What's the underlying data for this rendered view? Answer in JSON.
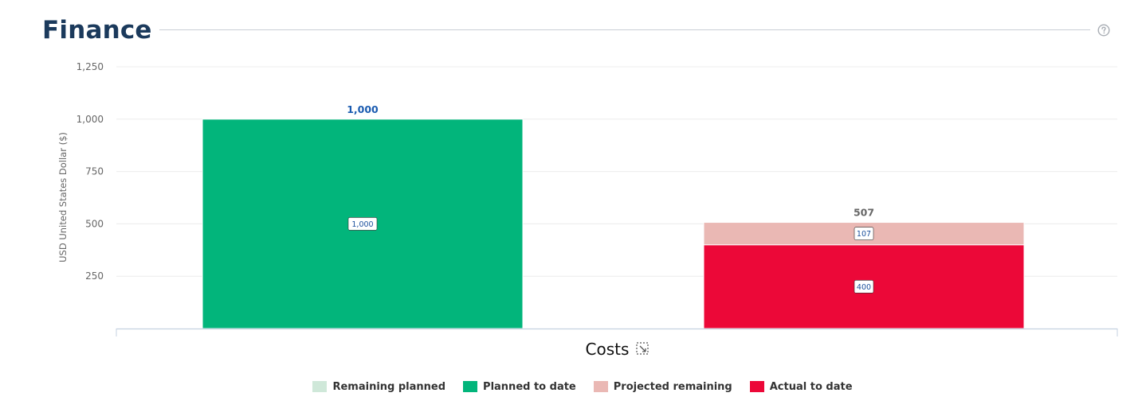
{
  "page": {
    "title": "Finance"
  },
  "colors": {
    "remaining_planned": "#cfe8d9",
    "planned_to_date": "#02b57b",
    "projected_remaining": "#eab8b4",
    "actual_to_date": "#ec0838",
    "title": "#1b3a5c",
    "bar_total_blue": "#1a5bb0",
    "bar_total_gray": "#666666"
  },
  "icons": {
    "help": "help-circle-icon",
    "zoom": "zoom-select-icon"
  },
  "chart_data": {
    "type": "bar",
    "stacked": true,
    "title": "",
    "xlabel": "Costs",
    "ylabel": "USD United States Dollar ($)",
    "ylim": [
      0,
      1250
    ],
    "yticks": [
      250,
      500,
      750,
      1000,
      1250
    ],
    "ytick_labels": [
      "250",
      "500",
      "750",
      "1,000",
      "1,250"
    ],
    "grid": true,
    "legend_position": "bottom",
    "bars": [
      {
        "segments": [
          {
            "series": "Planned to date",
            "value": 1000,
            "label": "1,000"
          }
        ],
        "total": 1000,
        "total_label": "1,000"
      },
      {
        "segments": [
          {
            "series": "Actual to date",
            "value": 400,
            "label": "400"
          },
          {
            "series": "Projected remaining",
            "value": 107,
            "label": "107"
          }
        ],
        "total": 507,
        "total_label": "507"
      }
    ],
    "legend": [
      {
        "name": "Remaining planned",
        "color": "#cfe8d9"
      },
      {
        "name": "Planned to date",
        "color": "#02b57b"
      },
      {
        "name": "Projected remaining",
        "color": "#eab8b4"
      },
      {
        "name": "Actual to date",
        "color": "#ec0838"
      }
    ]
  }
}
